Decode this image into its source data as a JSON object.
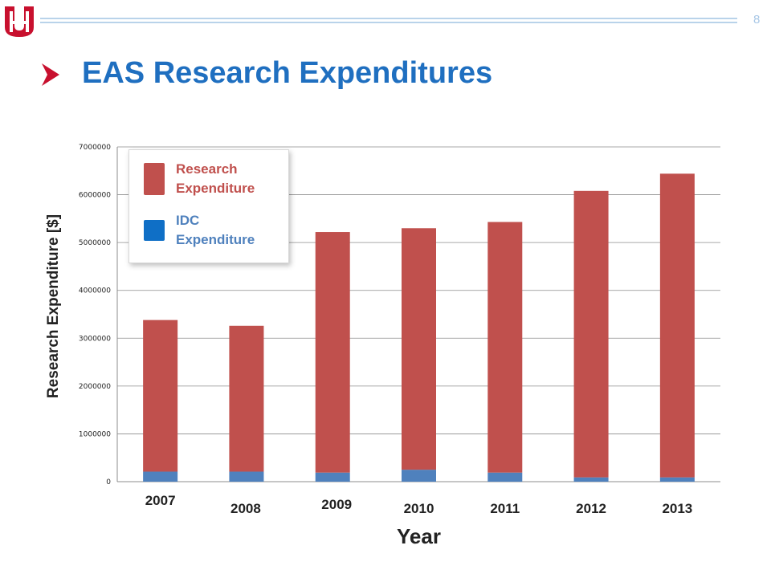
{
  "slide": {
    "page_number": "8",
    "title": "EAS Research Expenditures",
    "logo_icon": "uh-logo-icon",
    "bullet_icon": "arrow-bullet-icon",
    "title_color": "#1f6fc0"
  },
  "chart_data": {
    "type": "bar",
    "stacked": true,
    "categories": [
      "2007",
      "2008",
      "2009",
      "2010",
      "2011",
      "2012",
      "2013"
    ],
    "series": [
      {
        "name": "IDC Expenditure",
        "color": "#4f81bd",
        "values": [
          210000,
          210000,
          190000,
          250000,
          190000,
          90000,
          90000
        ]
      },
      {
        "name": "Research Expenditure",
        "color": "#c0504d",
        "values": [
          3170000,
          3050000,
          5030000,
          5050000,
          5240000,
          5990000,
          6350000
        ]
      }
    ],
    "xlabel": "Year",
    "ylabel": "Research Expenditure [$]",
    "ylim": [
      0,
      7000000
    ],
    "yticks": [
      "0",
      "1000000",
      "2000000",
      "3000000",
      "4000000",
      "5000000",
      "6000000",
      "7000000"
    ],
    "grid": true,
    "legend": {
      "placement": "top-left",
      "entries": [
        {
          "label": "Research Expenditure",
          "color": "#c0504d",
          "swatch_color": "#c0504d"
        },
        {
          "label": "IDC Expenditure",
          "color": "#4f81bd",
          "swatch_color": "#0f6fc6"
        }
      ]
    }
  }
}
